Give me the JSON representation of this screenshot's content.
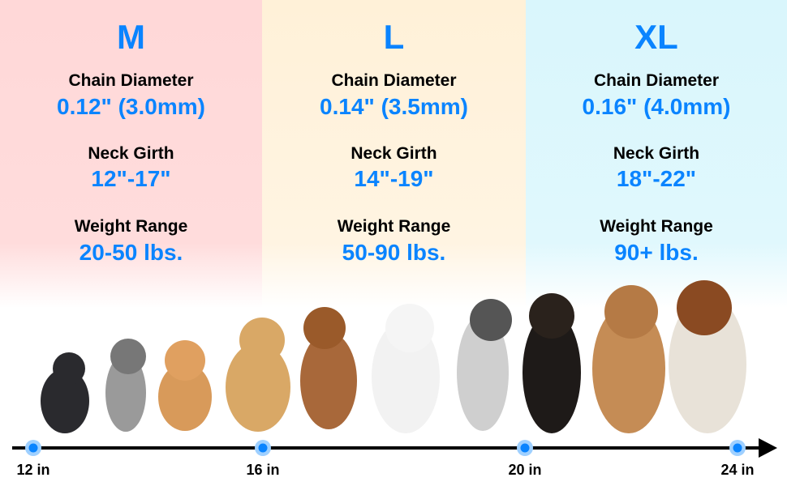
{
  "sizes": [
    {
      "size": "M",
      "chain_label": "Chain Diameter",
      "chain": "0.12\" (3.0mm)",
      "neck_label": "Neck Girth",
      "neck": "12\"-17\"",
      "weight_label": "Weight Range",
      "weight": "20-50 lbs."
    },
    {
      "size": "L",
      "chain_label": "Chain Diameter",
      "chain": "0.14\" (3.5mm)",
      "neck_label": "Neck Girth",
      "neck": "14\"-19\"",
      "weight_label": "Weight Range",
      "weight": "50-90 lbs."
    },
    {
      "size": "XL",
      "chain_label": "Chain Diameter",
      "chain": "0.16\" (4.0mm)",
      "neck_label": "Neck Girth",
      "neck": "18\"-22\"",
      "weight_label": "Weight Range",
      "weight": "90+ lbs."
    }
  ],
  "axis": {
    "ticks": [
      "12 in",
      "16 in",
      "20 in",
      "24 in"
    ]
  },
  "colors": {
    "accent": "#0a84ff",
    "m_bg": "#ffd8d8",
    "l_bg": "#fff1d8",
    "xl_bg": "#d9f6fc"
  }
}
